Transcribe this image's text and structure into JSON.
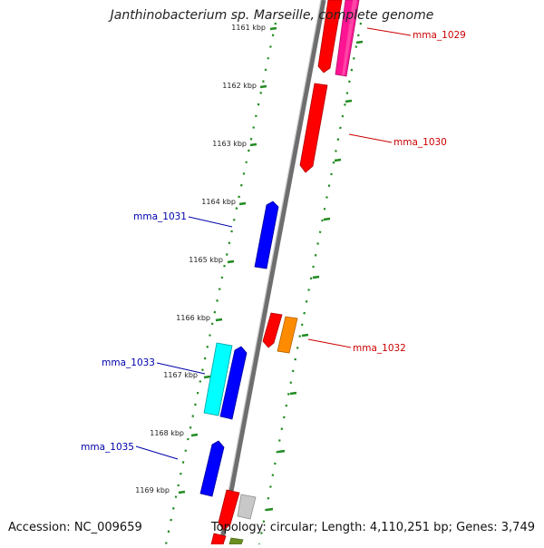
{
  "title": "Janthinobacterium sp. Marseille, complete genome",
  "accession": "Accession: NC_009659",
  "summary": "Topology: circular; Length: 4,110,251 bp; Genes: 3,749",
  "colors": {
    "backbone": "#808080",
    "tick": "#228b22",
    "forward_label": "#cc0000",
    "reverse_label": "#0000aa"
  },
  "kbp_ticks": [
    "1161 kbp",
    "1162 kbp",
    "1163 kbp",
    "1164 kbp",
    "1165 kbp",
    "1166 kbp",
    "1167 kbp",
    "1168 kbp",
    "1169 kbp"
  ],
  "gene_labels": [
    "mma_1029",
    "mma_1030",
    "mma_1031",
    "mma_1032",
    "mma_1033",
    "mma_1035"
  ]
}
